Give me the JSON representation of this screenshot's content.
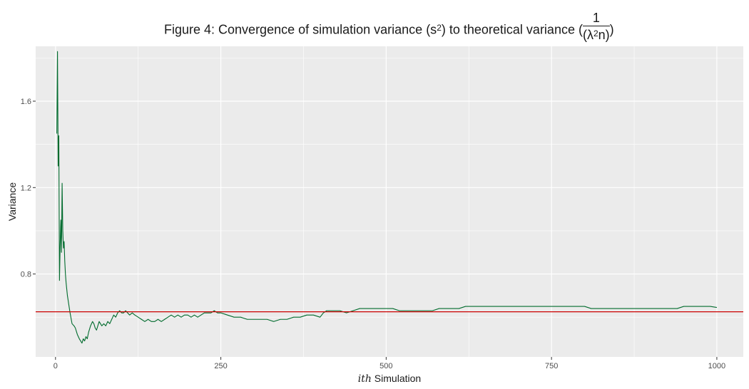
{
  "title": {
    "prefix": "Figure 4: Convergence of simulation variance (s",
    "sup": "2",
    "middle": ") to theoretical variance (",
    "frac_num": "1",
    "frac_den_pre": "(λ",
    "frac_den_sup": "2",
    "frac_den_post": "n)",
    "suffix": ")"
  },
  "chart_data": {
    "type": "line",
    "title": "Figure 4: Convergence of simulation variance (s²) to theoretical variance (1/(λ²n))",
    "xlabel_italic": "ith",
    "xlabel_rest": " Simulation",
    "ylabel": "Variance",
    "xlim": [
      -30,
      1040
    ],
    "ylim": [
      0.416,
      1.854
    ],
    "x_ticks": [
      0,
      250,
      500,
      750,
      1000
    ],
    "x_tick_labels": [
      "0",
      "250",
      "500",
      "750",
      "1000"
    ],
    "y_ticks": [
      0.8,
      1.2,
      1.6
    ],
    "y_tick_labels": [
      "0.8",
      "1.2",
      "1.6"
    ],
    "grid": true,
    "background": "#ebebeb",
    "hline": {
      "y": 0.625,
      "color": "#cc0000",
      "label": "theoretical variance"
    },
    "series": [
      {
        "color": "#006b2d",
        "points": [
          [
            2,
            1.45
          ],
          [
            3,
            1.83
          ],
          [
            4,
            1.3
          ],
          [
            5,
            1.44
          ],
          [
            6,
            0.77
          ],
          [
            7,
            0.93
          ],
          [
            8,
            1.05
          ],
          [
            9,
            0.9
          ],
          [
            10,
            1.22
          ],
          [
            11,
            1.0
          ],
          [
            12,
            0.92
          ],
          [
            13,
            0.95
          ],
          [
            14,
            0.86
          ],
          [
            15,
            0.8
          ],
          [
            16,
            0.76
          ],
          [
            17,
            0.73
          ],
          [
            18,
            0.7
          ],
          [
            20,
            0.66
          ],
          [
            22,
            0.62
          ],
          [
            25,
            0.57
          ],
          [
            28,
            0.56
          ],
          [
            30,
            0.55
          ],
          [
            33,
            0.52
          ],
          [
            36,
            0.5
          ],
          [
            38,
            0.49
          ],
          [
            40,
            0.48
          ],
          [
            42,
            0.5
          ],
          [
            44,
            0.49
          ],
          [
            46,
            0.51
          ],
          [
            48,
            0.5
          ],
          [
            50,
            0.53
          ],
          [
            53,
            0.56
          ],
          [
            56,
            0.58
          ],
          [
            58,
            0.57
          ],
          [
            60,
            0.55
          ],
          [
            62,
            0.54
          ],
          [
            64,
            0.56
          ],
          [
            66,
            0.58
          ],
          [
            68,
            0.57
          ],
          [
            70,
            0.56
          ],
          [
            73,
            0.57
          ],
          [
            76,
            0.56
          ],
          [
            79,
            0.58
          ],
          [
            82,
            0.57
          ],
          [
            85,
            0.59
          ],
          [
            88,
            0.61
          ],
          [
            91,
            0.6
          ],
          [
            94,
            0.62
          ],
          [
            97,
            0.63
          ],
          [
            100,
            0.62
          ],
          [
            103,
            0.62
          ],
          [
            106,
            0.63
          ],
          [
            109,
            0.62
          ],
          [
            112,
            0.61
          ],
          [
            116,
            0.62
          ],
          [
            120,
            0.61
          ],
          [
            125,
            0.6
          ],
          [
            130,
            0.59
          ],
          [
            135,
            0.58
          ],
          [
            140,
            0.59
          ],
          [
            145,
            0.58
          ],
          [
            150,
            0.58
          ],
          [
            155,
            0.59
          ],
          [
            160,
            0.58
          ],
          [
            165,
            0.59
          ],
          [
            170,
            0.6
          ],
          [
            175,
            0.61
          ],
          [
            180,
            0.6
          ],
          [
            185,
            0.61
          ],
          [
            190,
            0.6
          ],
          [
            195,
            0.61
          ],
          [
            200,
            0.61
          ],
          [
            205,
            0.6
          ],
          [
            210,
            0.61
          ],
          [
            215,
            0.6
          ],
          [
            220,
            0.61
          ],
          [
            225,
            0.62
          ],
          [
            230,
            0.62
          ],
          [
            235,
            0.62
          ],
          [
            240,
            0.63
          ],
          [
            245,
            0.62
          ],
          [
            250,
            0.62
          ],
          [
            260,
            0.61
          ],
          [
            270,
            0.6
          ],
          [
            280,
            0.6
          ],
          [
            290,
            0.59
          ],
          [
            300,
            0.59
          ],
          [
            310,
            0.59
          ],
          [
            320,
            0.59
          ],
          [
            330,
            0.58
          ],
          [
            340,
            0.59
          ],
          [
            350,
            0.59
          ],
          [
            360,
            0.6
          ],
          [
            370,
            0.6
          ],
          [
            380,
            0.61
          ],
          [
            390,
            0.61
          ],
          [
            400,
            0.6
          ],
          [
            405,
            0.62
          ],
          [
            410,
            0.63
          ],
          [
            420,
            0.63
          ],
          [
            430,
            0.63
          ],
          [
            440,
            0.62
          ],
          [
            450,
            0.63
          ],
          [
            460,
            0.64
          ],
          [
            470,
            0.64
          ],
          [
            480,
            0.64
          ],
          [
            490,
            0.64
          ],
          [
            500,
            0.64
          ],
          [
            510,
            0.64
          ],
          [
            520,
            0.63
          ],
          [
            530,
            0.63
          ],
          [
            540,
            0.63
          ],
          [
            550,
            0.63
          ],
          [
            560,
            0.63
          ],
          [
            570,
            0.63
          ],
          [
            580,
            0.64
          ],
          [
            590,
            0.64
          ],
          [
            600,
            0.64
          ],
          [
            610,
            0.64
          ],
          [
            620,
            0.65
          ],
          [
            630,
            0.65
          ],
          [
            640,
            0.65
          ],
          [
            650,
            0.65
          ],
          [
            660,
            0.65
          ],
          [
            670,
            0.65
          ],
          [
            680,
            0.65
          ],
          [
            690,
            0.65
          ],
          [
            700,
            0.65
          ],
          [
            710,
            0.65
          ],
          [
            720,
            0.65
          ],
          [
            730,
            0.65
          ],
          [
            740,
            0.65
          ],
          [
            750,
            0.65
          ],
          [
            760,
            0.65
          ],
          [
            770,
            0.65
          ],
          [
            780,
            0.65
          ],
          [
            790,
            0.65
          ],
          [
            800,
            0.65
          ],
          [
            810,
            0.64
          ],
          [
            820,
            0.64
          ],
          [
            830,
            0.64
          ],
          [
            840,
            0.64
          ],
          [
            850,
            0.64
          ],
          [
            860,
            0.64
          ],
          [
            870,
            0.64
          ],
          [
            880,
            0.64
          ],
          [
            890,
            0.64
          ],
          [
            900,
            0.64
          ],
          [
            910,
            0.64
          ],
          [
            920,
            0.64
          ],
          [
            930,
            0.64
          ],
          [
            940,
            0.64
          ],
          [
            950,
            0.65
          ],
          [
            960,
            0.65
          ],
          [
            970,
            0.65
          ],
          [
            980,
            0.65
          ],
          [
            990,
            0.65
          ],
          [
            1000,
            0.645
          ]
        ]
      }
    ]
  }
}
